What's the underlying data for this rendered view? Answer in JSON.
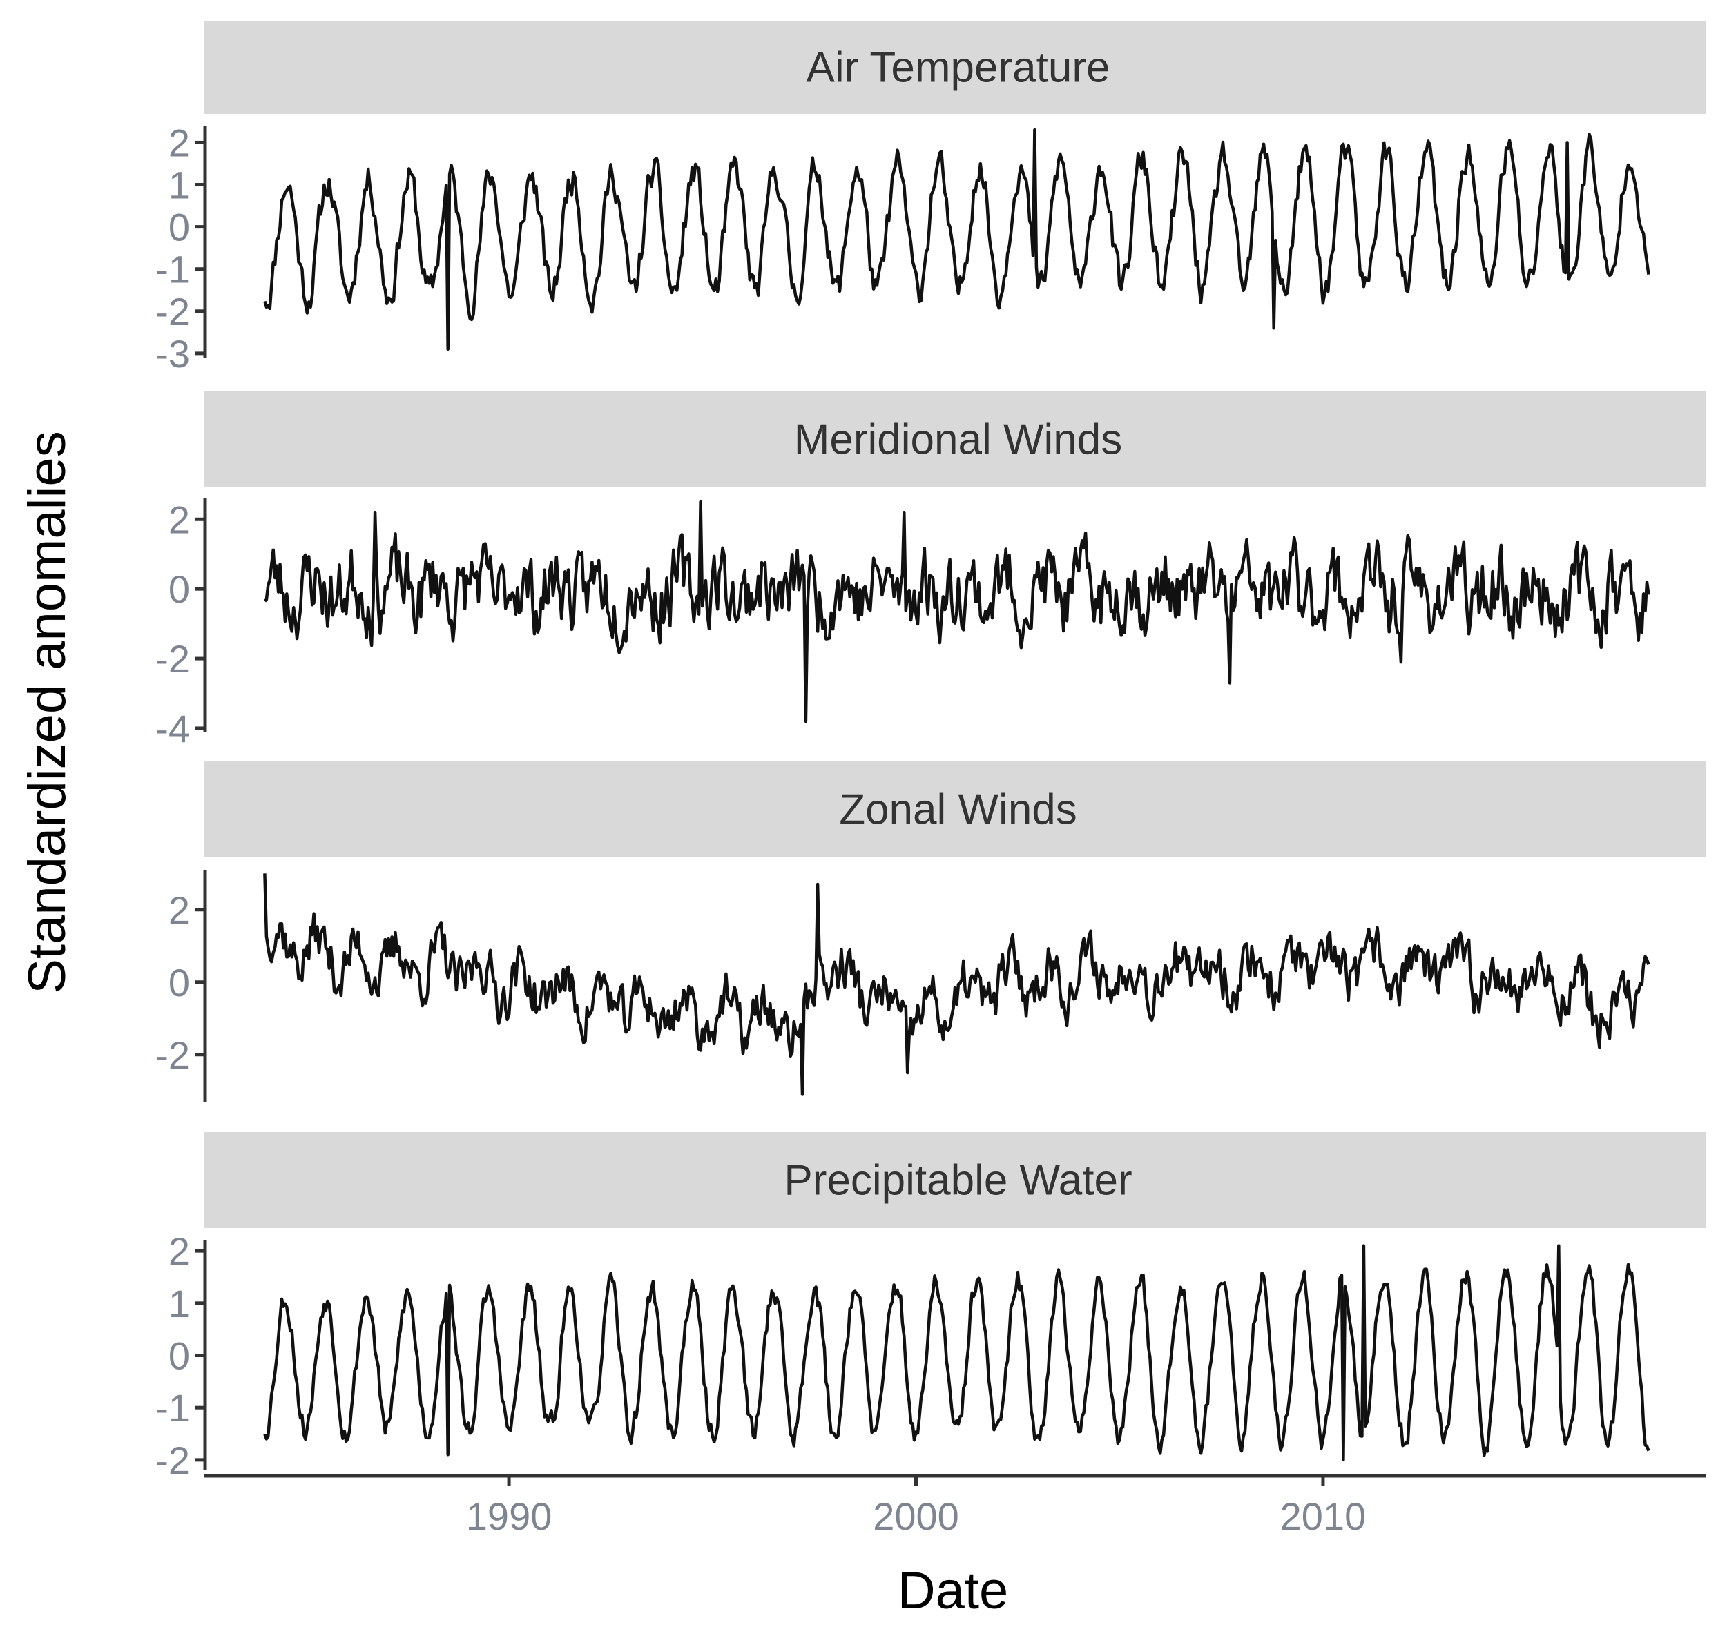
{
  "chart_data": {
    "type": "line",
    "layout": "faceted",
    "xlabel": "Date",
    "ylabel": "Standardized anomalies",
    "x_range": [
      1982.5,
      2019.4
    ],
    "x_ticks": [
      1990,
      2000,
      2010
    ],
    "x_tick_labels": [
      "1990",
      "2000",
      "2010"
    ],
    "grid": false,
    "line_color": "#111111",
    "strip_color": "#d9d9d9",
    "panels": [
      {
        "title": "Air Temperature",
        "ylim": [
          -3.1,
          2.4
        ],
        "y_ticks": [
          -3,
          -2,
          -1,
          0,
          1,
          2
        ],
        "y_tick_labels": [
          "-3",
          "-2",
          "-1",
          "0",
          "1",
          "2"
        ],
        "x_range": [
          1984.0,
          2018.0
        ],
        "pattern": {
          "mean": -0.3,
          "trend": 0.55,
          "amplitude": 1.35,
          "amp_trend": 0.3,
          "phase": 0.55,
          "noise": 0.35,
          "seed": 11
        },
        "features": [
          [
            1988.5,
            -2.9
          ],
          [
            2002.9,
            2.3
          ],
          [
            2008.8,
            -2.4
          ],
          [
            2016.0,
            2.0
          ]
        ]
      },
      {
        "title": "Meridional Winds",
        "ylim": [
          -4.1,
          2.6
        ],
        "y_ticks": [
          -4,
          -2,
          0,
          2
        ],
        "y_tick_labels": [
          "-4",
          "-2",
          "0",
          "2"
        ],
        "x_range": [
          1984.0,
          2018.0
        ],
        "pattern": {
          "mean": 0.0,
          "trend": -0.1,
          "amplitude": 0.35,
          "amp_trend": -0.1,
          "phase": 0.2,
          "noise": 0.9,
          "seed": 23
        },
        "features": [
          [
            1986.7,
            2.2
          ],
          [
            1994.7,
            2.5
          ],
          [
            1997.3,
            -3.8
          ],
          [
            1999.7,
            2.2
          ],
          [
            2007.7,
            -2.7
          ],
          [
            2011.9,
            -2.1
          ]
        ]
      },
      {
        "title": "Zonal Winds",
        "ylim": [
          -3.3,
          3.1
        ],
        "y_ticks": [
          -2,
          0,
          2
        ],
        "y_tick_labels": [
          "-2",
          "0",
          "2"
        ],
        "x_range": [
          1984.0,
          2018.0
        ],
        "pattern": {
          "mean": 0.0,
          "trend": 0.0,
          "amplitude": 0.45,
          "amp_trend": 0.0,
          "phase": 0.3,
          "noise": 0.6,
          "seed": 37
        },
        "baseline": [
          [
            1984.0,
            1.3
          ],
          [
            1986.0,
            0.6
          ],
          [
            1988.0,
            0.5
          ],
          [
            1990.0,
            0.0
          ],
          [
            1993.0,
            -0.7
          ],
          [
            1996.0,
            -1.0
          ],
          [
            1997.3,
            -1.3
          ],
          [
            1997.6,
            0.6
          ],
          [
            1999.8,
            -1.1
          ],
          [
            2002.5,
            0.1
          ],
          [
            2006.0,
            0.3
          ],
          [
            2012.0,
            0.4
          ],
          [
            2016.0,
            0.0
          ],
          [
            2017.3,
            -1.2
          ],
          [
            2018.0,
            0.8
          ]
        ],
        "features": [
          [
            1984.0,
            3.0
          ],
          [
            1997.6,
            2.7
          ],
          [
            1997.2,
            -3.1
          ],
          [
            1999.8,
            -2.5
          ],
          [
            2016.8,
            -1.8
          ]
        ]
      },
      {
        "title": "Precipitable Water",
        "ylim": [
          -2.2,
          2.2
        ],
        "y_ticks": [
          -2,
          -1,
          0,
          1,
          2
        ],
        "y_tick_labels": [
          "-2",
          "-1",
          "0",
          "1",
          "2"
        ],
        "x_range": [
          1984.0,
          2018.0
        ],
        "pattern": {
          "mean": -0.15,
          "trend": 0.15,
          "amplitude": 1.25,
          "amp_trend": 0.45,
          "phase": 0.5,
          "noise": 0.22,
          "seed": 53
        },
        "features": [
          [
            1988.5,
            -1.9
          ],
          [
            2010.5,
            -2.0
          ],
          [
            2011.0,
            2.1
          ],
          [
            2015.8,
            2.1
          ]
        ]
      }
    ]
  }
}
